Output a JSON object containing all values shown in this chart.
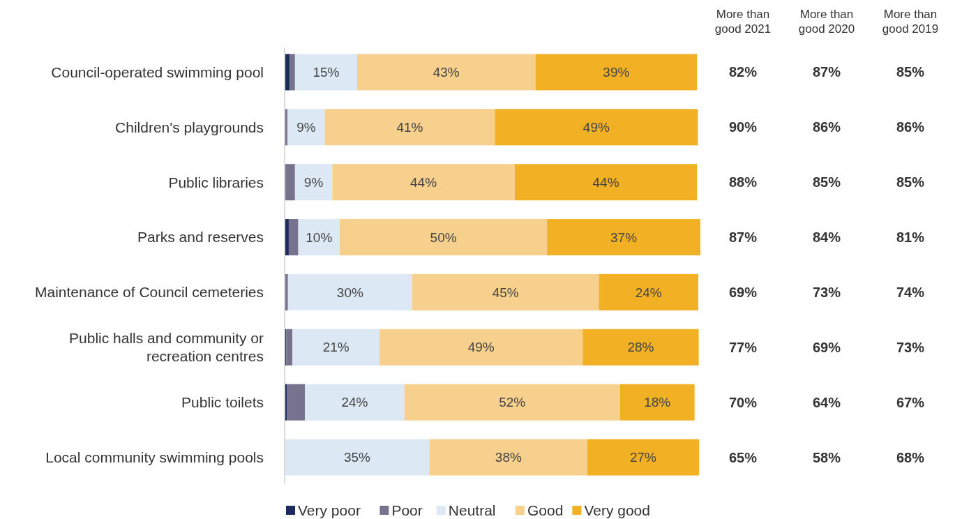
{
  "chart_data": {
    "type": "bar",
    "orientation": "horizontal",
    "stacked": true,
    "legend": "bottom",
    "categories": [
      "Council-operated swimming pool",
      "Children's playgrounds",
      "Public libraries",
      "Parks and reserves",
      "Maintenance of Council cemeteries",
      "Public halls and community or recreation centres",
      "Public toilets",
      "Local community swimming pools"
    ],
    "series": [
      {
        "name": "Very poor",
        "color": "#1f2a5c",
        "values": [
          1.2,
          0,
          0,
          1,
          0,
          0.4,
          0.6,
          0
        ],
        "value_labels": [
          null,
          null,
          null,
          null,
          null,
          null,
          null,
          null
        ]
      },
      {
        "name": "Poor",
        "color": "#77738f",
        "values": [
          1.3,
          0.7,
          2.5,
          2.3,
          0.8,
          1.5,
          4.3,
          0
        ],
        "value_labels": [
          null,
          null,
          null,
          null,
          null,
          null,
          null,
          null
        ]
      },
      {
        "name": "Neutral",
        "color": "#dce9f5",
        "values": [
          15,
          9,
          9,
          10,
          30,
          21,
          24,
          35
        ],
        "value_labels": [
          "15%",
          "9%",
          "9%",
          "10%",
          "30%",
          "21%",
          "24%",
          "35%"
        ]
      },
      {
        "name": "Good",
        "color": "#f8d08e",
        "values": [
          43,
          41,
          44,
          50,
          45,
          49,
          52,
          38
        ],
        "value_labels": [
          "43%",
          "41%",
          "44%",
          "50%",
          "45%",
          "49%",
          "52%",
          "38%"
        ]
      },
      {
        "name": "Very good",
        "color": "#f2b124",
        "values": [
          39,
          49,
          44,
          37,
          24,
          28,
          18,
          27
        ],
        "value_labels": [
          "39%",
          "49%",
          "44%",
          "37%",
          "24%",
          "28%",
          "18%",
          "27%"
        ]
      }
    ],
    "annotations": [
      "More than good 2021",
      "More than good 2020",
      "More than good 2019",
      "82%",
      "87%",
      "85%",
      "90%",
      "86%",
      "86%",
      "88%",
      "85%",
      "85%",
      "87%",
      "84%",
      "81%",
      "69%",
      "73%",
      "74%",
      "77%",
      "69%",
      "73%",
      "70%",
      "64%",
      "67%",
      "65%",
      "58%",
      "68%"
    ]
  }
}
